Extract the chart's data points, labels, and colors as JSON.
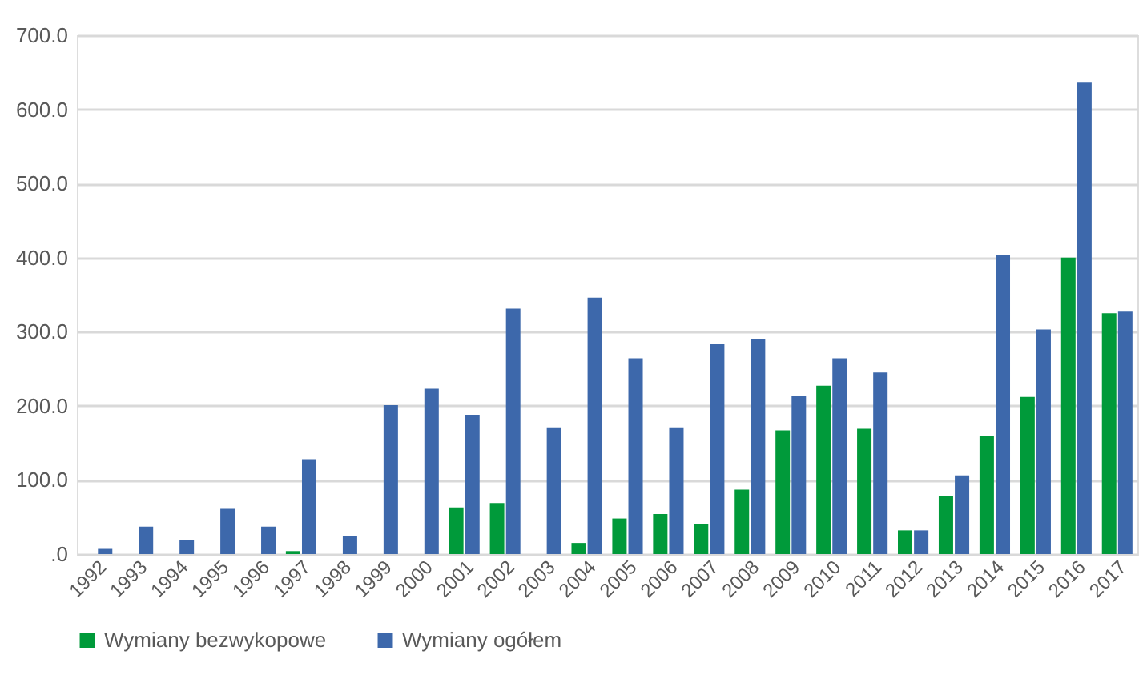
{
  "chart_data": {
    "type": "bar",
    "categories": [
      "1992",
      "1993",
      "1994",
      "1995",
      "1996",
      "1997",
      "1998",
      "1999",
      "2000",
      "2001",
      "2002",
      "2003",
      "2004",
      "2005",
      "2006",
      "2007",
      "2008",
      "2009",
      "2010",
      "2011",
      "2012",
      "2013",
      "2014",
      "2015",
      "2016",
      "2017"
    ],
    "series": [
      {
        "name": "Wymiany bezwykopowe",
        "color": "#009a3a",
        "values": [
          null,
          null,
          null,
          null,
          null,
          4,
          null,
          null,
          null,
          63,
          69,
          null,
          15,
          48,
          54,
          41,
          87,
          167,
          227,
          169,
          32,
          78,
          160,
          212,
          400,
          325
        ]
      },
      {
        "name": "Wymiany ogółem",
        "color": "#3d68ab",
        "values": [
          7,
          37,
          19,
          61,
          37,
          128,
          24,
          201,
          223,
          188,
          331,
          171,
          346,
          264,
          171,
          284,
          290,
          214,
          264,
          245,
          32,
          106,
          403,
          303,
          636,
          327
        ]
      }
    ],
    "ylim": [
      0,
      700
    ],
    "yticks": [
      {
        "value": 0,
        "label": ".0"
      },
      {
        "value": 100,
        "label": "100.0"
      },
      {
        "value": 200,
        "label": "200.0"
      },
      {
        "value": 300,
        "label": "300.0"
      },
      {
        "value": 400,
        "label": "400.0"
      },
      {
        "value": 500,
        "label": "500.0"
      },
      {
        "value": 600,
        "label": "600.0"
      },
      {
        "value": 700,
        "label": "700.0"
      }
    ],
    "grid": "y",
    "legend": "bottom"
  }
}
